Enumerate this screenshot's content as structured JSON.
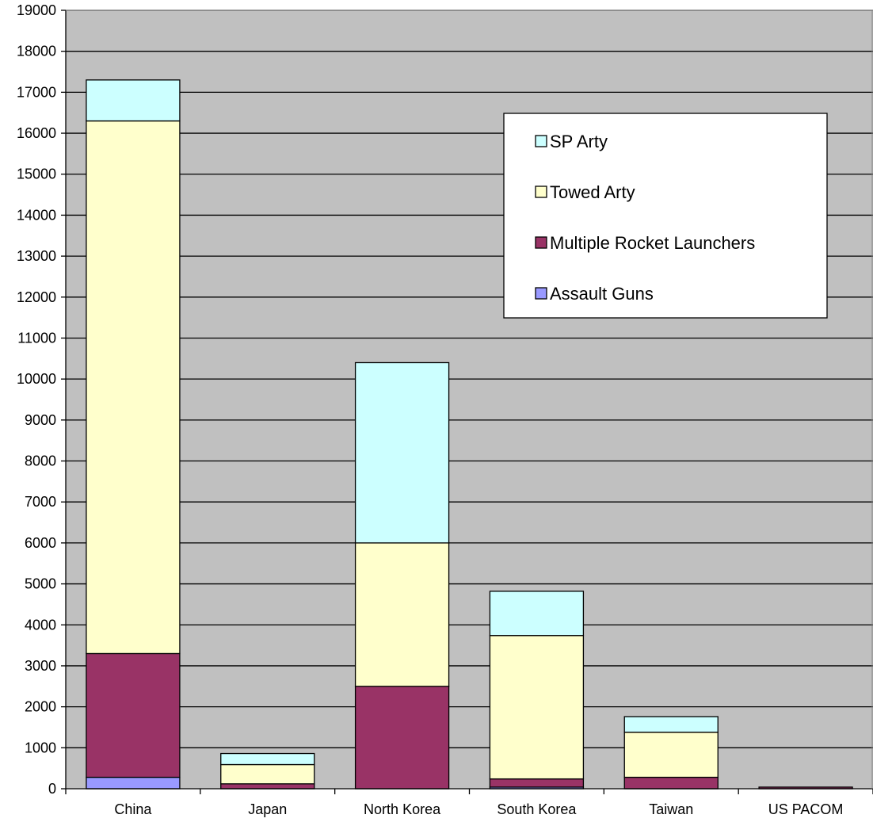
{
  "chart_data": {
    "type": "bar",
    "stacked": true,
    "categories": [
      "China",
      "Japan",
      "North Korea",
      "South Korea",
      "Taiwan",
      "US PACOM"
    ],
    "series": [
      {
        "name": "Assault Guns",
        "color": "#9999ff",
        "values": [
          280,
          0,
          0,
          40,
          0,
          0
        ]
      },
      {
        "name": "Multiple Rocket Launchers",
        "color": "#993366",
        "values": [
          3020,
          120,
          2500,
          200,
          280,
          40
        ]
      },
      {
        "name": "Towed Arty",
        "color": "#ffffcc",
        "values": [
          13000,
          470,
          3500,
          3500,
          1100,
          0
        ]
      },
      {
        "name": "SP Arty",
        "color": "#ccffff",
        "values": [
          1000,
          270,
          4400,
          1080,
          380,
          0
        ]
      }
    ],
    "legend_order": [
      "SP Arty",
      "Towed Arty",
      "Multiple Rocket Launchers",
      "Assault Guns"
    ],
    "ylim": [
      0,
      19000
    ],
    "yticks": [
      0,
      1000,
      2000,
      3000,
      4000,
      5000,
      6000,
      7000,
      8000,
      9000,
      10000,
      11000,
      12000,
      13000,
      14000,
      15000,
      16000,
      17000,
      18000,
      19000
    ],
    "title": "",
    "xlabel": "",
    "ylabel": "",
    "grid": true,
    "legend_position": "upper-right",
    "plot_background": "#c0c0c0"
  }
}
